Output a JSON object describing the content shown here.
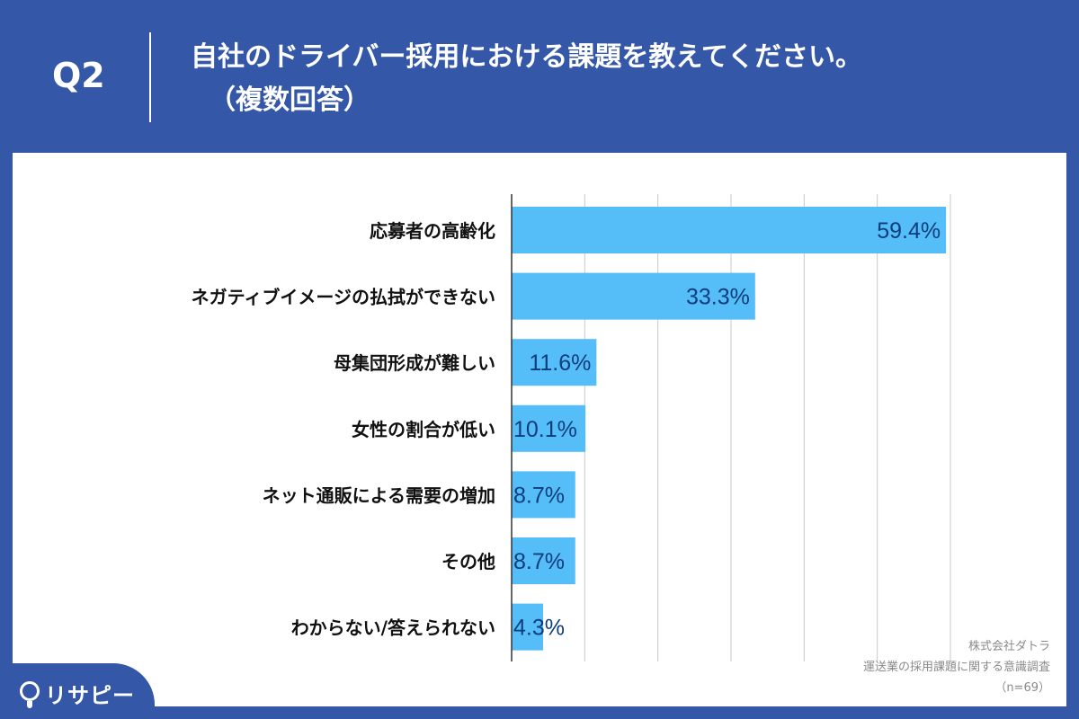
{
  "header": {
    "q_label": "Q2",
    "title_line1": "自社のドライバー採用における課題を教えてください。",
    "title_line2": "（複数回答）"
  },
  "chart_data": {
    "type": "bar",
    "orientation": "horizontal",
    "categories": [
      "応募者の高齢化",
      "ネガティブイメージの払拭ができない",
      "母集団形成が難しい",
      "女性の割合が低い",
      "ネット通販による需要の増加",
      "その他",
      "わからない/答えられない"
    ],
    "values": [
      59.4,
      33.3,
      11.6,
      10.1,
      8.7,
      8.7,
      4.3
    ],
    "value_labels": [
      "59.4%",
      "33.3%",
      "11.6%",
      "10.1%",
      "8.7%",
      "8.7%",
      "4.3%"
    ],
    "xlim": [
      0,
      60
    ],
    "grid": true,
    "bar_color": "#55bdf8",
    "label_color": "#0d3d7a"
  },
  "source": {
    "line1": "株式会社ダトラ",
    "line2": "運送業の採用課題に関する意識調査",
    "line3": "（n=69）"
  },
  "logo": {
    "text": "リサピー"
  },
  "colors": {
    "background": "#3457a8",
    "panel": "#ffffff"
  }
}
